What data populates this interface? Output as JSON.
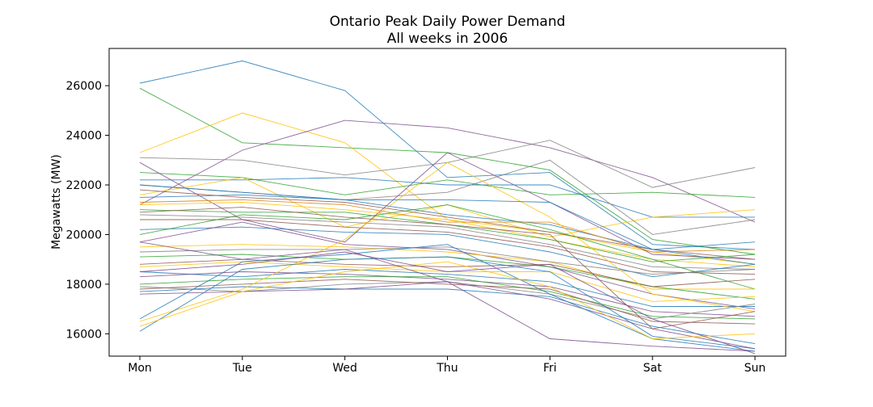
{
  "chart_data": {
    "type": "line",
    "title": "Ontario Peak Daily Power Demand",
    "subtitle": "All weeks in 2006",
    "xlabel": "",
    "ylabel": "Megawatts (MW)",
    "categories": [
      "Mon",
      "Tue",
      "Wed",
      "Thu",
      "Fri",
      "Sat",
      "Sun"
    ],
    "ylim": [
      15100,
      27500
    ],
    "yticks": [
      16000,
      18000,
      20000,
      22000,
      24000,
      26000
    ],
    "grid": false,
    "legend": "none",
    "colors": [
      "#1f77b4",
      "#2ca02c",
      "#ffbf00",
      "#7f7f7f",
      "#8c564b",
      "#7b4b8c",
      "#d67f0e"
    ],
    "series": [
      {
        "values": [
          26100,
          27000,
          25800,
          22300,
          22500,
          19600,
          19400
        ],
        "color": "#1f77b4"
      },
      {
        "values": [
          25900,
          23700,
          23500,
          23300,
          22600,
          19800,
          19200
        ],
        "color": "#2ca02c"
      },
      {
        "values": [
          23300,
          24900,
          23700,
          20600,
          20100,
          19300,
          18800
        ],
        "color": "#ffbf00"
      },
      {
        "values": [
          21200,
          23400,
          24600,
          24300,
          23500,
          22300,
          20500
        ],
        "color": "#7b4b8c"
      },
      {
        "values": [
          23100,
          23000,
          22400,
          22900,
          23800,
          21900,
          22700
        ],
        "color": "#7f7f7f"
      },
      {
        "values": [
          22500,
          22300,
          21600,
          22200,
          21600,
          21700,
          21500
        ],
        "color": "#2ca02c"
      },
      {
        "values": [
          22900,
          20600,
          19700,
          23300,
          21300,
          19200,
          19000
        ],
        "color": "#7b4b8c"
      },
      {
        "values": [
          22200,
          22200,
          22300,
          22000,
          22000,
          20700,
          20700
        ],
        "color": "#1f77b4"
      },
      {
        "values": [
          21600,
          22300,
          20300,
          21200,
          19900,
          20700,
          21000
        ],
        "color": "#ffbf00"
      },
      {
        "values": [
          22000,
          21700,
          21400,
          21700,
          23000,
          20000,
          20600
        ],
        "color": "#7f7f7f"
      },
      {
        "values": [
          21800,
          21500,
          21300,
          20700,
          20100,
          19400,
          19000
        ],
        "color": "#8c564b"
      },
      {
        "values": [
          21500,
          21600,
          21400,
          20800,
          20400,
          19400,
          18800
        ],
        "color": "#1f77b4"
      },
      {
        "values": [
          21300,
          21400,
          21200,
          20500,
          20500,
          19300,
          19400
        ],
        "color": "#d67f0e"
      },
      {
        "values": [
          21200,
          21300,
          21000,
          20600,
          19800,
          19000,
          18700
        ],
        "color": "#ffbf00"
      },
      {
        "values": [
          21000,
          20900,
          20900,
          20400,
          19800,
          18900,
          19200
        ],
        "color": "#2ca02c"
      },
      {
        "values": [
          20800,
          20700,
          20500,
          20300,
          19600,
          18700,
          18600
        ],
        "color": "#7f7f7f"
      },
      {
        "values": [
          20600,
          20600,
          20300,
          20100,
          19500,
          18500,
          18400
        ],
        "color": "#8c564b"
      },
      {
        "values": [
          20200,
          20300,
          20100,
          20000,
          19300,
          18300,
          18800
        ],
        "color": "#1f77b4"
      },
      {
        "values": [
          20000,
          20800,
          20600,
          21200,
          20200,
          19000,
          17800
        ],
        "color": "#2ca02c"
      },
      {
        "values": [
          19700,
          20500,
          19600,
          19400,
          18700,
          17600,
          17000
        ],
        "color": "#7b4b8c"
      },
      {
        "values": [
          19500,
          19600,
          19500,
          19300,
          18900,
          17800,
          17800
        ],
        "color": "#ffbf00"
      },
      {
        "values": [
          19300,
          19400,
          19400,
          19500,
          18900,
          18400,
          18600
        ],
        "color": "#7f7f7f"
      },
      {
        "values": [
          19100,
          19200,
          19000,
          19100,
          18700,
          17900,
          17400
        ],
        "color": "#2ca02c"
      },
      {
        "values": [
          18800,
          19000,
          18800,
          18700,
          18800,
          17900,
          18200
        ],
        "color": "#8c564b"
      },
      {
        "values": [
          18700,
          18900,
          18700,
          18500,
          18500,
          17300,
          17500
        ],
        "color": "#ffbf00"
      },
      {
        "values": [
          18500,
          18300,
          18600,
          18400,
          18100,
          17100,
          17100
        ],
        "color": "#1f77b4"
      },
      {
        "values": [
          18300,
          18500,
          18400,
          18200,
          17900,
          16900,
          16700
        ],
        "color": "#7b4b8c"
      },
      {
        "values": [
          18000,
          18200,
          18300,
          18300,
          17700,
          16700,
          16600
        ],
        "color": "#2ca02c"
      },
      {
        "values": [
          17900,
          17700,
          18000,
          18100,
          17600,
          16600,
          17200
        ],
        "color": "#7f7f7f"
      },
      {
        "values": [
          17800,
          18000,
          18200,
          18000,
          17800,
          16500,
          16400
        ],
        "color": "#8c564b"
      },
      {
        "values": [
          17700,
          17900,
          17800,
          17800,
          17500,
          16300,
          15600
        ],
        "color": "#1f77b4"
      },
      {
        "values": [
          17600,
          17700,
          17800,
          18100,
          17400,
          16200,
          15400
        ],
        "color": "#7b4b8c"
      },
      {
        "values": [
          16600,
          18900,
          19200,
          19600,
          17600,
          15800,
          15300
        ],
        "color": "#1f77b4"
      },
      {
        "values": [
          16500,
          17800,
          19800,
          22900,
          20700,
          17600,
          16900
        ],
        "color": "#ffbf00"
      },
      {
        "values": [
          16100,
          18600,
          19000,
          19100,
          18500,
          15900,
          15400
        ],
        "color": "#1f77b4"
      },
      {
        "values": [
          16300,
          17700,
          18500,
          18900,
          17900,
          15800,
          16000
        ],
        "color": "#ffbf00"
      },
      {
        "values": [
          18500,
          18800,
          19300,
          18500,
          18800,
          16600,
          15200
        ],
        "color": "#7b4b8c"
      },
      {
        "values": [
          19700,
          19000,
          19400,
          18100,
          15800,
          15500,
          15300
        ],
        "color": "#7b4b8c"
      },
      {
        "values": [
          20900,
          21100,
          20700,
          20400,
          20000,
          16200,
          16900
        ],
        "color": "#8c564b"
      },
      {
        "values": [
          22000,
          21700,
          21400,
          21400,
          21300,
          19400,
          19700
        ],
        "color": "#1f77b4"
      }
    ]
  }
}
